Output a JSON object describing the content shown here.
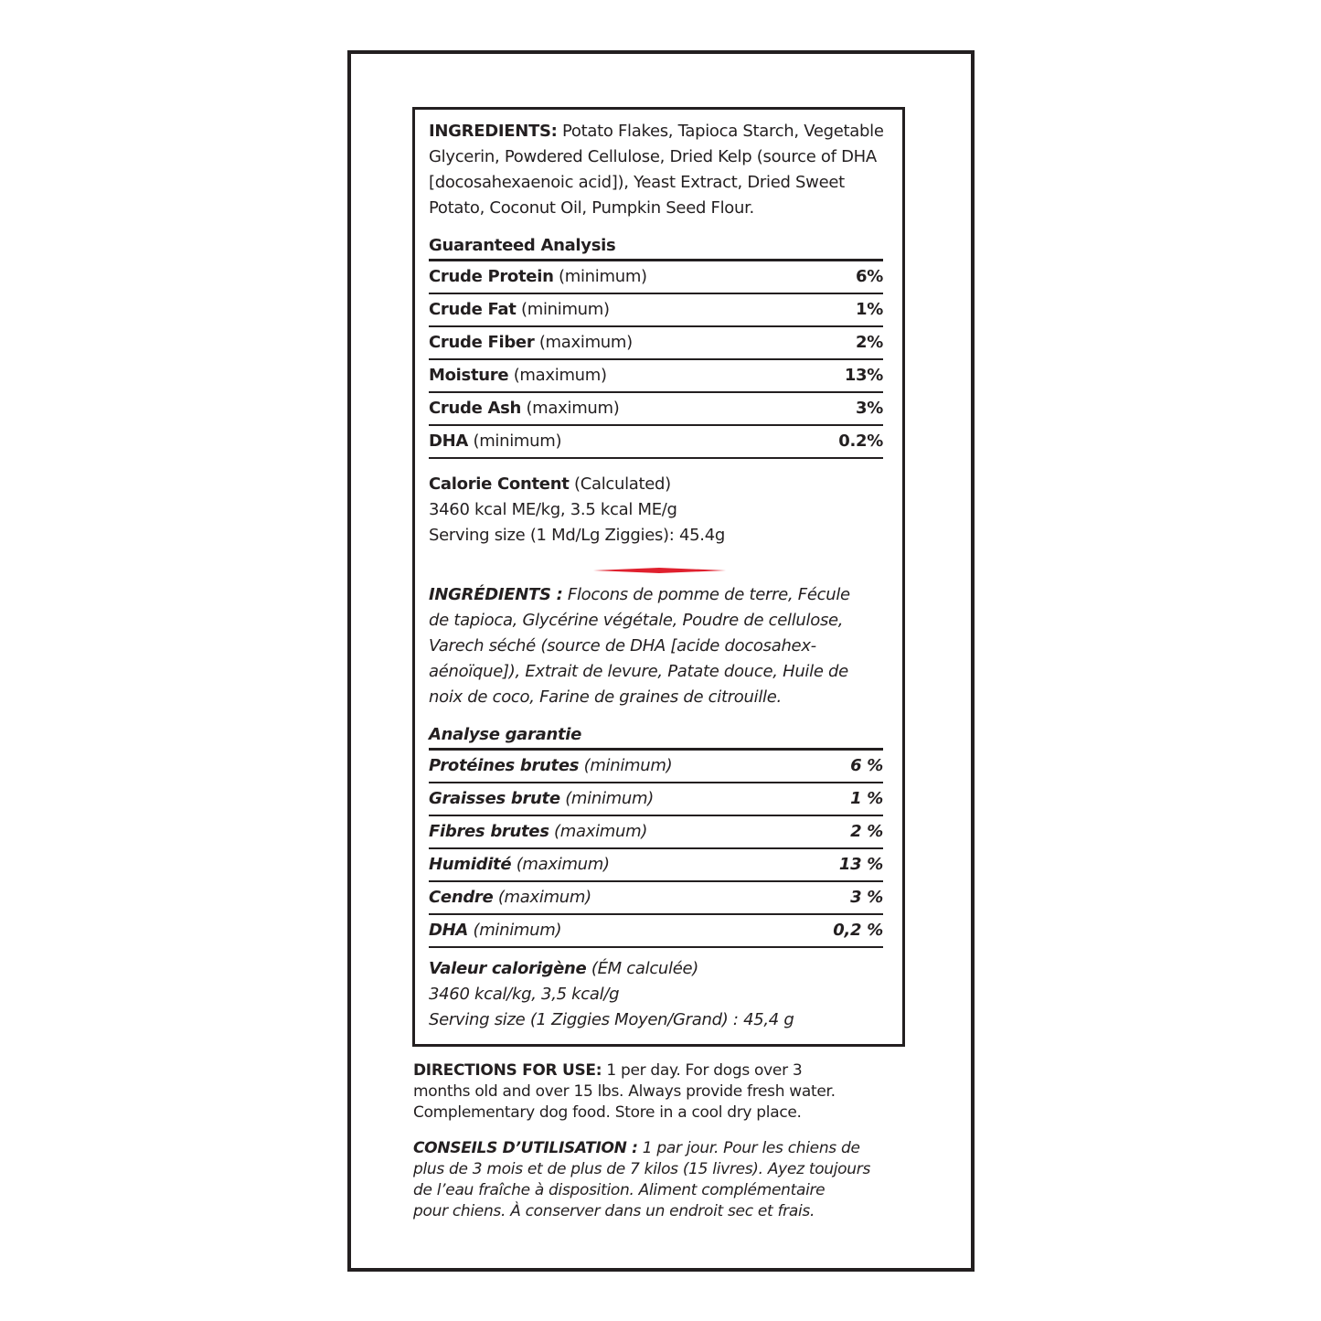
{
  "english": {
    "ingredients": {
      "label": "INGREDIENTS:",
      "lines": [
        "Potato Flakes, Tapioca Starch, Vegetable",
        "Glycerin, Powdered Cellulose, Dried Kelp (source of DHA",
        "[docosahexaenoic acid]), Yeast Extract, Dried Sweet",
        "Potato, Coconut Oil, Pumpkin Seed Flour."
      ]
    },
    "analysis_title": "Guaranteed Analysis",
    "analysis": [
      {
        "name": "Crude Protein",
        "qual": "(minimum)",
        "value": "6%"
      },
      {
        "name": "Crude Fat",
        "qual": "(minimum)",
        "value": "1%"
      },
      {
        "name": "Crude Fiber",
        "qual": "(maximum)",
        "value": "2%"
      },
      {
        "name": "Moisture",
        "qual": "(maximum)",
        "value": "13%"
      },
      {
        "name": "Crude Ash",
        "qual": "(maximum)",
        "value": "3%"
      },
      {
        "name": "DHA",
        "qual": "(minimum)",
        "value": "0.2%"
      }
    ],
    "calorie": {
      "label": "Calorie Content",
      "qual": "(Calculated)",
      "lines": [
        "3460 kcal ME/kg, 3.5 kcal ME/g",
        "Serving size (1 Md/Lg Ziggies): 45.4g"
      ]
    }
  },
  "divider_color": "#e0202e",
  "french": {
    "ingredients": {
      "label": "INGRÉDIENTS :",
      "lines": [
        " Flocons de pomme de terre, Fécule",
        "de tapioca, Glycérine végétale, Poudre de cellulose,",
        "Varech séché (source de DHA [acide docosahex-",
        "aénoïque]), Extrait de levure, Patate douce, Huile de",
        "noix de coco, Farine de graines de citrouille."
      ]
    },
    "analysis_title": "Analyse garantie",
    "analysis": [
      {
        "name": "Protéines brutes",
        "qual": "(minimum)",
        "value": "6 %"
      },
      {
        "name": "Graisses brute",
        "qual": "(minimum)",
        "value": "1 %"
      },
      {
        "name": "Fibres brutes",
        "qual": "(maximum)",
        "value": "2 %"
      },
      {
        "name": "Humidité",
        "qual": "(maximum)",
        "value": "13 %"
      },
      {
        "name": "Cendre",
        "qual": "(maximum)",
        "value": "3 %"
      },
      {
        "name": "DHA",
        "qual": "(minimum)",
        "value": "0,2 %"
      }
    ],
    "calorie": {
      "label": "Valeur calorigène",
      "qual": "(ÉM calculée)",
      "lines": [
        "3460 kcal/kg, 3,5 kcal/g",
        "Serving size (1 Ziggies Moyen/Grand) : 45,4 g"
      ]
    }
  },
  "directions": {
    "label": "DIRECTIONS FOR USE:",
    "lines": [
      " 1 per day. For dogs over 3",
      "months old and over 15 lbs. Always provide fresh water.",
      "Complementary dog food. Store in a cool dry place."
    ]
  },
  "conseils": {
    "label": "CONSEILS D’UTILISATION :",
    "lines": [
      " 1 par jour. Pour les chiens de",
      "plus de 3 mois et de plus de 7 kilos (15 livres). Ayez toujours",
      "de l’eau fraîche à disposition. Aliment complémentaire",
      "pour chiens. À conserver dans un endroit sec et frais."
    ]
  }
}
